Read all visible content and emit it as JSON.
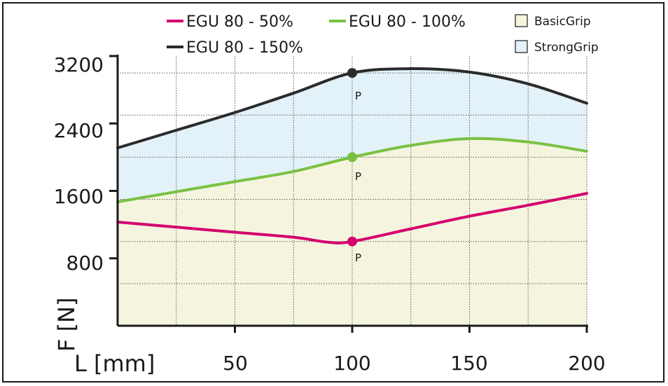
{
  "chart_data": {
    "type": "area",
    "xlabel": "L [mm]",
    "ylabel": "F [N]",
    "xlim": [
      0,
      200
    ],
    "ylim": [
      0,
      3200
    ],
    "x_ticks": [
      "50",
      "100",
      "150",
      "200"
    ],
    "y_ticks": [
      "800",
      "1600",
      "2400",
      "3200"
    ],
    "series": [
      {
        "name": "EGU 80 - 50%",
        "color": "#d4006e",
        "x": [
          0,
          50,
          75,
          90,
          100,
          125,
          150,
          175,
          200
        ],
        "y": [
          1230,
          1110,
          1050,
          990,
          1000,
          1150,
          1300,
          1430,
          1570
        ]
      },
      {
        "name": "EGU 80 - 100%",
        "color": "#7ac143",
        "x": [
          0,
          25,
          50,
          75,
          100,
          125,
          150,
          175,
          200
        ],
        "y": [
          1470,
          1590,
          1710,
          1830,
          2000,
          2140,
          2220,
          2180,
          2070
        ]
      },
      {
        "name": "EGU 80 - 150%",
        "color": "#2b2b2b",
        "x": [
          0,
          25,
          50,
          75,
          100,
          125,
          150,
          175,
          200
        ],
        "y": [
          2110,
          2320,
          2530,
          2760,
          3000,
          3050,
          3010,
          2870,
          2640
        ]
      }
    ],
    "areas": [
      {
        "name": "BasicGrip",
        "color": "#f5f5df"
      },
      {
        "name": "StrongGrip",
        "color": "#e3f2f8"
      }
    ],
    "points": [
      {
        "label": "P",
        "x": 100,
        "y": 1000,
        "color": "#d4006e"
      },
      {
        "label": "P",
        "x": 100,
        "y": 2000,
        "color": "#7ac143"
      },
      {
        "label": "P",
        "x": 100,
        "y": 3000,
        "color": "#2b2b2b"
      }
    ],
    "gridlines_y": [
      500,
      1000,
      1500,
      2000,
      2500,
      3000
    ],
    "gridlines_x": [
      25,
      50,
      75,
      100,
      125,
      150,
      175,
      200
    ],
    "grid": true,
    "legend_position": "top"
  }
}
